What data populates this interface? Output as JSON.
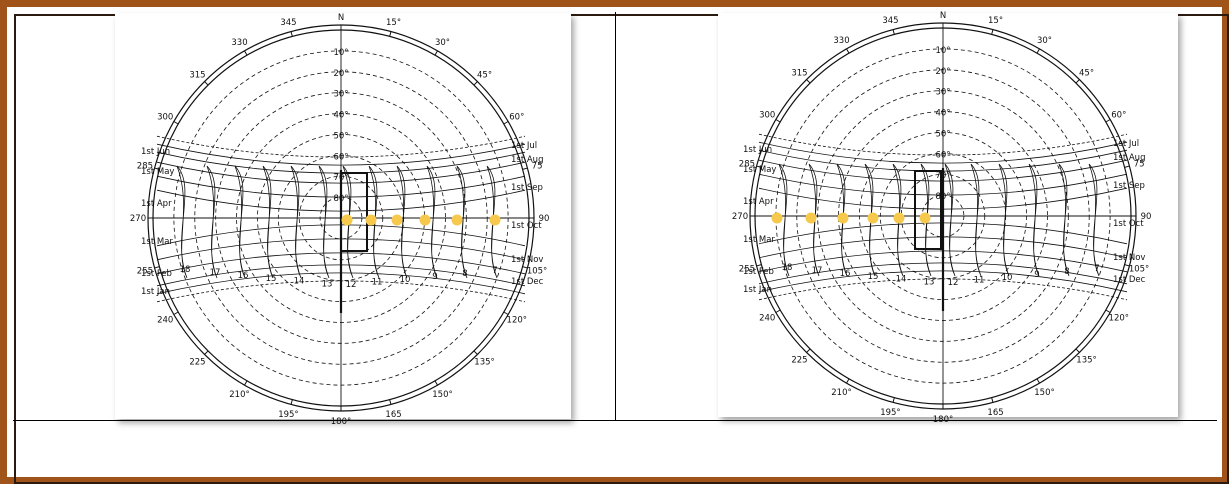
{
  "colors": {
    "frame_border": "#a0541a",
    "sun_marker": "#f6c84c",
    "ink": "#111111"
  },
  "diagram": {
    "north_label": "N",
    "azimuth_labels": [
      "15°",
      "30°",
      "45°",
      "60°",
      "75",
      "90",
      "105°",
      "120°",
      "135°",
      "150°",
      "165",
      "180°",
      "195°",
      "210°",
      "225",
      "240",
      "255",
      "270",
      "285",
      "300",
      "315",
      "330",
      "345"
    ],
    "altitude_labels": [
      "10°",
      "20°",
      "30°",
      "40°",
      "50°",
      "60°",
      "70°",
      "80°"
    ],
    "right_side_month_labels": [
      "1st Jul",
      "1st Aug",
      "1st Sep",
      "1st Oct",
      "1st Nov",
      "1st Dec"
    ],
    "left_side_month_labels": [
      "1st Jun",
      "1st May",
      "1st Apr",
      "1st Mar",
      "1st Feb",
      "1st Jan"
    ],
    "hour_labels": [
      "18",
      "17",
      "16",
      "15",
      "14",
      "13",
      "12",
      "11",
      "10",
      "9",
      "8",
      "7"
    ]
  },
  "left_chart": {
    "sun_marker_count": 6,
    "shading_box_side": "right"
  },
  "right_chart": {
    "sun_marker_count": 6,
    "shading_box_side": "left"
  }
}
